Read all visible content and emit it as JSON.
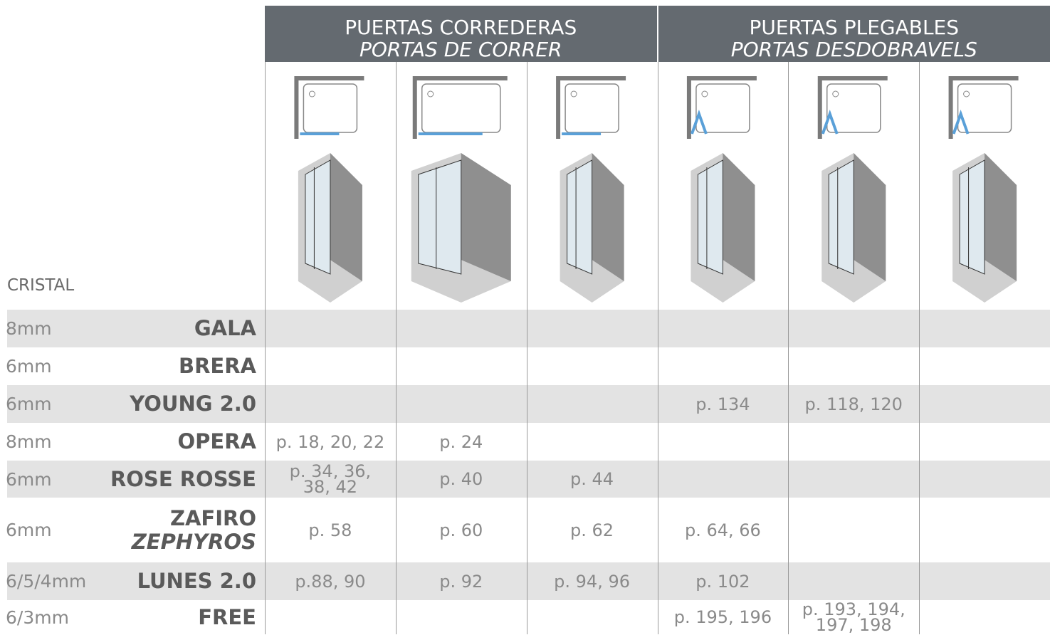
{
  "header": {
    "groups": [
      {
        "title": "PUERTAS CORREDERAS",
        "subtitle": "PORTAS DE CORRER"
      },
      {
        "title": "PUERTAS PLEGABLES",
        "subtitle": "PORTAS DESDOBRAVELS"
      }
    ],
    "cristal_label": "CRISTAL"
  },
  "table": {
    "rows": [
      {
        "thickness": "8mm",
        "name": "GALA",
        "cells": [
          null,
          null,
          null,
          null,
          null,
          null
        ]
      },
      {
        "thickness": "6mm",
        "name": "BRERA",
        "cells": [
          null,
          null,
          null,
          null,
          null,
          null
        ]
      },
      {
        "thickness": "6mm",
        "name": "YOUNG 2.0",
        "cells": [
          null,
          null,
          null,
          "p. 134",
          "p. 118, 120",
          null
        ]
      },
      {
        "thickness": "8mm",
        "name": "OPERA",
        "cells": [
          "p. 18, 20, 22",
          "p. 24",
          null,
          null,
          null,
          null
        ]
      },
      {
        "thickness": "6mm",
        "name": "ROSE ROSSE",
        "cells": [
          "p. 34, 36, 38, 42",
          "p. 40",
          "p. 44",
          null,
          null,
          null
        ]
      },
      {
        "thickness": "6mm",
        "name": "ZAFIRO",
        "name_alt": "ZEPHYROS",
        "cells": [
          "p. 58",
          "p. 60",
          "p. 62",
          "p. 64, 66",
          null,
          null
        ]
      },
      {
        "thickness": "6/5/4mm",
        "name": "LUNES 2.0",
        "cells": [
          "p.88, 90",
          "p. 92",
          "p. 94, 96",
          "p. 102",
          null,
          null
        ]
      },
      {
        "thickness": "6/3mm",
        "name": "FREE",
        "cells": [
          null,
          null,
          null,
          "p. 195, 196",
          "p. 193, 194, 197, 198",
          null
        ]
      }
    ]
  }
}
